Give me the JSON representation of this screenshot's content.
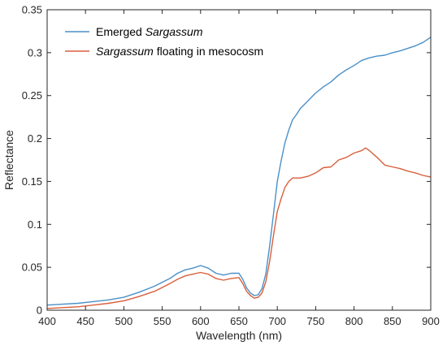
{
  "chart_data": {
    "type": "line",
    "title": "",
    "xlabel": "Wavelength (nm)",
    "ylabel": "Reflectance",
    "xlim": [
      400,
      900
    ],
    "ylim": [
      0,
      0.35
    ],
    "x_ticks": [
      400,
      450,
      500,
      550,
      600,
      650,
      700,
      750,
      800,
      850,
      900
    ],
    "x_tick_labels": [
      "400",
      "450",
      "500",
      "550",
      "600",
      "650",
      "700",
      "750",
      "800",
      "850",
      "900"
    ],
    "y_ticks": [
      0,
      0.05,
      0.1,
      0.15,
      0.2,
      0.25,
      0.3,
      0.35
    ],
    "y_tick_labels": [
      "0",
      "0.05",
      "0.1",
      "0.15",
      "0.2",
      "0.25",
      "0.3",
      "0.35"
    ],
    "grid": false,
    "legend_position": "top-left",
    "series": [
      {
        "name_parts": [
          {
            "text": "Emerged ",
            "italic": false
          },
          {
            "text": "Sargassum",
            "italic": true
          }
        ],
        "color": "#4A90C8",
        "x": [
          400,
          420,
          440,
          460,
          480,
          500,
          520,
          540,
          560,
          570,
          580,
          590,
          600,
          610,
          620,
          630,
          640,
          650,
          655,
          660,
          665,
          670,
          675,
          680,
          685,
          690,
          695,
          700,
          705,
          710,
          715,
          720,
          725,
          730,
          740,
          750,
          760,
          770,
          780,
          790,
          800,
          810,
          820,
          830,
          840,
          850,
          860,
          870,
          880,
          890,
          900
        ],
        "y": [
          0.006,
          0.007,
          0.008,
          0.01,
          0.012,
          0.015,
          0.021,
          0.028,
          0.037,
          0.043,
          0.047,
          0.049,
          0.052,
          0.049,
          0.043,
          0.041,
          0.043,
          0.043,
          0.036,
          0.026,
          0.02,
          0.017,
          0.018,
          0.025,
          0.042,
          0.075,
          0.112,
          0.15,
          0.174,
          0.195,
          0.21,
          0.222,
          0.228,
          0.235,
          0.244,
          0.253,
          0.26,
          0.266,
          0.274,
          0.28,
          0.285,
          0.291,
          0.294,
          0.296,
          0.297,
          0.3,
          0.302,
          0.305,
          0.308,
          0.312,
          0.318
        ]
      },
      {
        "name_parts": [
          {
            "text": "Sargassum",
            "italic": true
          },
          {
            "text": " floating in mesocosm",
            "italic": false
          }
        ],
        "color": "#D95F3B",
        "x": [
          400,
          420,
          440,
          460,
          480,
          500,
          520,
          540,
          560,
          570,
          580,
          590,
          600,
          610,
          620,
          630,
          640,
          650,
          655,
          660,
          665,
          670,
          675,
          680,
          685,
          690,
          695,
          700,
          705,
          710,
          715,
          720,
          725,
          730,
          740,
          750,
          760,
          770,
          780,
          790,
          800,
          810,
          815,
          820,
          830,
          840,
          850,
          860,
          870,
          880,
          890,
          900
        ],
        "y": [
          0.002,
          0.003,
          0.004,
          0.006,
          0.008,
          0.011,
          0.016,
          0.022,
          0.031,
          0.036,
          0.04,
          0.042,
          0.044,
          0.042,
          0.037,
          0.035,
          0.037,
          0.038,
          0.031,
          0.022,
          0.017,
          0.014,
          0.015,
          0.02,
          0.033,
          0.057,
          0.087,
          0.115,
          0.13,
          0.143,
          0.15,
          0.154,
          0.154,
          0.154,
          0.156,
          0.16,
          0.166,
          0.167,
          0.175,
          0.178,
          0.183,
          0.186,
          0.189,
          0.186,
          0.178,
          0.169,
          0.167,
          0.165,
          0.162,
          0.16,
          0.157,
          0.155
        ]
      }
    ]
  }
}
